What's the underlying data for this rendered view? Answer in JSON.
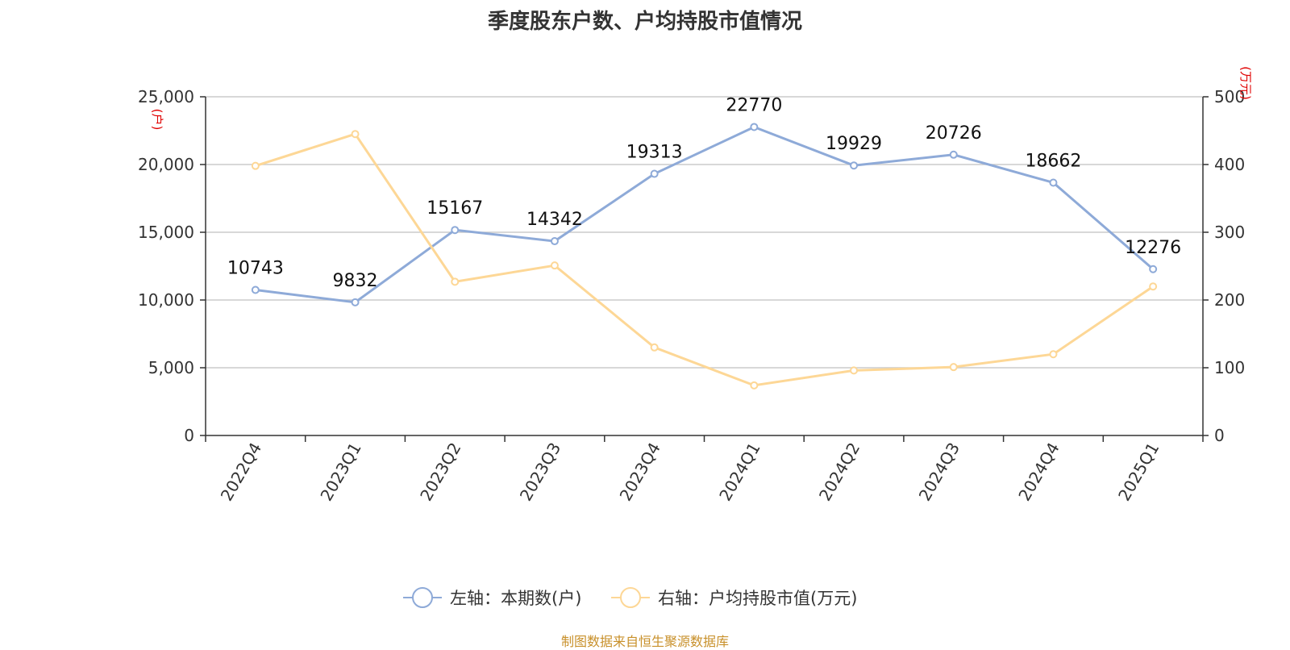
{
  "title": "季度股东户数、户均持股市值情况",
  "source": "制图数据来自恒生聚源数据库",
  "chart_data": {
    "type": "line",
    "title": "季度股东户数、户均持股市值情况",
    "categories": [
      "2022Q4",
      "2023Q1",
      "2023Q2",
      "2023Q3",
      "2023Q4",
      "2024Q1",
      "2024Q2",
      "2024Q3",
      "2024Q4",
      "2025Q1"
    ],
    "left_axis": {
      "unit": "(户)",
      "ylim": [
        0,
        25000
      ],
      "ticks": [
        0,
        5000,
        10000,
        15000,
        20000,
        25000
      ],
      "tick_labels": [
        "0",
        "5,000",
        "10,000",
        "15,000",
        "20,000",
        "25,000"
      ]
    },
    "right_axis": {
      "unit": "(万元)",
      "ylim": [
        0,
        500
      ],
      "ticks": [
        0,
        100,
        200,
        300,
        400,
        500
      ],
      "tick_labels": [
        "0",
        "100",
        "200",
        "300",
        "400",
        "500"
      ]
    },
    "series": [
      {
        "name": "左轴：本期数(户)",
        "axis": "left",
        "color": "#8eaad8",
        "values": [
          10743,
          9832,
          15167,
          14342,
          19313,
          22770,
          19929,
          20726,
          18662,
          12276
        ],
        "labels": [
          "10743",
          "9832",
          "15167",
          "14342",
          "19313",
          "22770",
          "19929",
          "20726",
          "18662",
          "12276"
        ]
      },
      {
        "name": "右轴：户均持股市值(万元)",
        "axis": "right",
        "color": "#fdd796",
        "values": [
          398,
          445,
          227,
          251,
          130,
          74,
          96,
          101,
          120,
          220
        ]
      }
    ],
    "grid": true,
    "legend_position": "bottom"
  }
}
